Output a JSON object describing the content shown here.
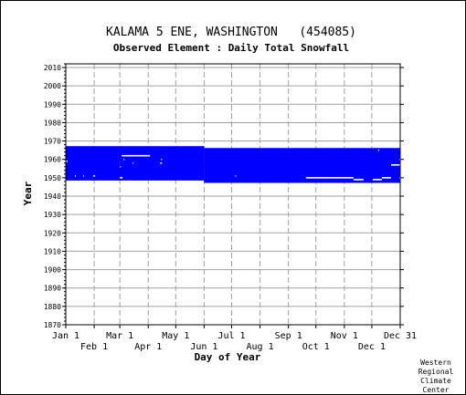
{
  "chart_data": {
    "type": "heatmap",
    "title": "KALAMA 5 ENE, WASHINGTON   (454085)",
    "subtitle": "Observed Element : Daily Total Snowfall",
    "xlabel": "Day of Year",
    "ylabel": "Year",
    "xlim": [
      1,
      366
    ],
    "ylim": [
      1870,
      2012
    ],
    "y_ticks": [
      1870,
      1880,
      1890,
      1900,
      1910,
      1920,
      1930,
      1940,
      1950,
      1960,
      1970,
      1980,
      1990,
      2000,
      2010
    ],
    "x_ticks_upper": [
      {
        "label": "Jan 1",
        "day": 1
      },
      {
        "label": "Mar 1",
        "day": 60
      },
      {
        "label": "May 1",
        "day": 121
      },
      {
        "label": "Jul 1",
        "day": 182
      },
      {
        "label": "Sep 1",
        "day": 244
      },
      {
        "label": "Nov 1",
        "day": 305
      },
      {
        "label": "Dec 31",
        "day": 366
      }
    ],
    "x_ticks_lower": [
      {
        "label": "Feb 1",
        "day": 32
      },
      {
        "label": "Apr 1",
        "day": 91
      },
      {
        "label": "Jun 1",
        "day": 152
      },
      {
        "label": "Aug 1",
        "day": 213
      },
      {
        "label": "Oct 1",
        "day": 274
      },
      {
        "label": "Dec 1",
        "day": 335
      }
    ],
    "grid": true,
    "data_color": "#0000ff",
    "coverage_blocks": [
      {
        "day_start": 1,
        "day_end": 152,
        "year_start": 1948.5,
        "year_end": 1967.2
      },
      {
        "day_start": 152,
        "day_end": 366,
        "year_start": 1947.2,
        "year_end": 1966.2
      }
    ],
    "missing_segments": [
      {
        "day_start": 1,
        "day_end": 3,
        "year": 1959
      },
      {
        "day_start": 11,
        "day_end": 12,
        "year": 1951
      },
      {
        "day_start": 20,
        "day_end": 21,
        "year": 1951
      },
      {
        "day_start": 31,
        "day_end": 33,
        "year": 1951
      },
      {
        "day_start": 60,
        "day_end": 63,
        "year": 1950
      },
      {
        "day_start": 60,
        "day_end": 61,
        "year": 1956
      },
      {
        "day_start": 62,
        "day_end": 93,
        "year": 1962
      },
      {
        "day_start": 64,
        "day_end": 65,
        "year": 1960
      },
      {
        "day_start": 74,
        "day_end": 75,
        "year": 1958
      },
      {
        "day_start": 105,
        "day_end": 106,
        "year": 1960
      },
      {
        "day_start": 104,
        "day_end": 106,
        "year": 1958
      },
      {
        "day_start": 186,
        "day_end": 187,
        "year": 1951
      },
      {
        "day_start": 263,
        "day_end": 315,
        "year": 1950
      },
      {
        "day_start": 315,
        "day_end": 326,
        "year": 1949
      },
      {
        "day_start": 336,
        "day_end": 346,
        "year": 1949
      },
      {
        "day_start": 346,
        "day_end": 356,
        "year": 1950
      },
      {
        "day_start": 356,
        "day_end": 366,
        "year": 1957
      },
      {
        "day_start": 342,
        "day_end": 343,
        "year": 1965
      },
      {
        "day_start": 365,
        "day_end": 366,
        "year": 1960
      },
      {
        "day_start": 365,
        "day_end": 366,
        "year": 1950
      }
    ]
  },
  "credit": {
    "line1": "Western",
    "line2": "Regional",
    "line3": "Climate",
    "line4": "Center"
  }
}
